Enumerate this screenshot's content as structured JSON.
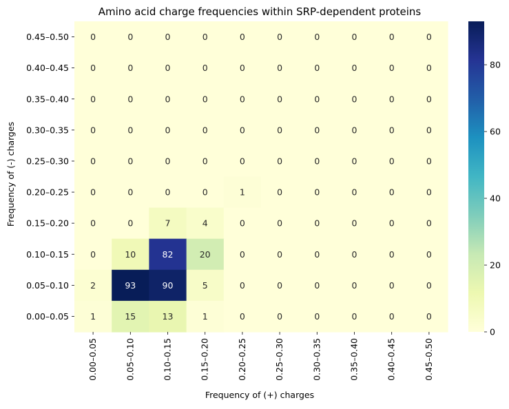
{
  "chart_data": {
    "type": "heatmap",
    "title": "Amino acid charge frequencies within SRP-dependent proteins",
    "xlabel": "Frequency of (+) charges",
    "ylabel": "Frequency of (-) charges",
    "x_categories": [
      "0.00–0.05",
      "0.05–0.10",
      "0.10–0.15",
      "0.15–0.20",
      "0.20–0.25",
      "0.25–0.30",
      "0.30–0.35",
      "0.35–0.40",
      "0.40–0.45",
      "0.45–0.50"
    ],
    "y_categories": [
      "0.45–0.50",
      "0.40–0.45",
      "0.35–0.40",
      "0.30–0.35",
      "0.25–0.30",
      "0.20–0.25",
      "0.15–0.20",
      "0.10–0.15",
      "0.05–0.10",
      "0.00–0.05"
    ],
    "values": [
      [
        0,
        0,
        0,
        0,
        0,
        0,
        0,
        0,
        0,
        0
      ],
      [
        0,
        0,
        0,
        0,
        0,
        0,
        0,
        0,
        0,
        0
      ],
      [
        0,
        0,
        0,
        0,
        0,
        0,
        0,
        0,
        0,
        0
      ],
      [
        0,
        0,
        0,
        0,
        0,
        0,
        0,
        0,
        0,
        0
      ],
      [
        0,
        0,
        0,
        0,
        0,
        0,
        0,
        0,
        0,
        0
      ],
      [
        0,
        0,
        0,
        0,
        1,
        0,
        0,
        0,
        0,
        0
      ],
      [
        0,
        0,
        7,
        4,
        0,
        0,
        0,
        0,
        0,
        0
      ],
      [
        0,
        10,
        82,
        20,
        0,
        0,
        0,
        0,
        0,
        0
      ],
      [
        2,
        93,
        90,
        5,
        0,
        0,
        0,
        0,
        0,
        0
      ],
      [
        1,
        15,
        13,
        1,
        0,
        0,
        0,
        0,
        0,
        0
      ]
    ],
    "colormap": "YlGnBu",
    "color_range": [
      0,
      93
    ],
    "colorbar_ticks": [
      0,
      20,
      40,
      60,
      80
    ],
    "grid": false
  }
}
